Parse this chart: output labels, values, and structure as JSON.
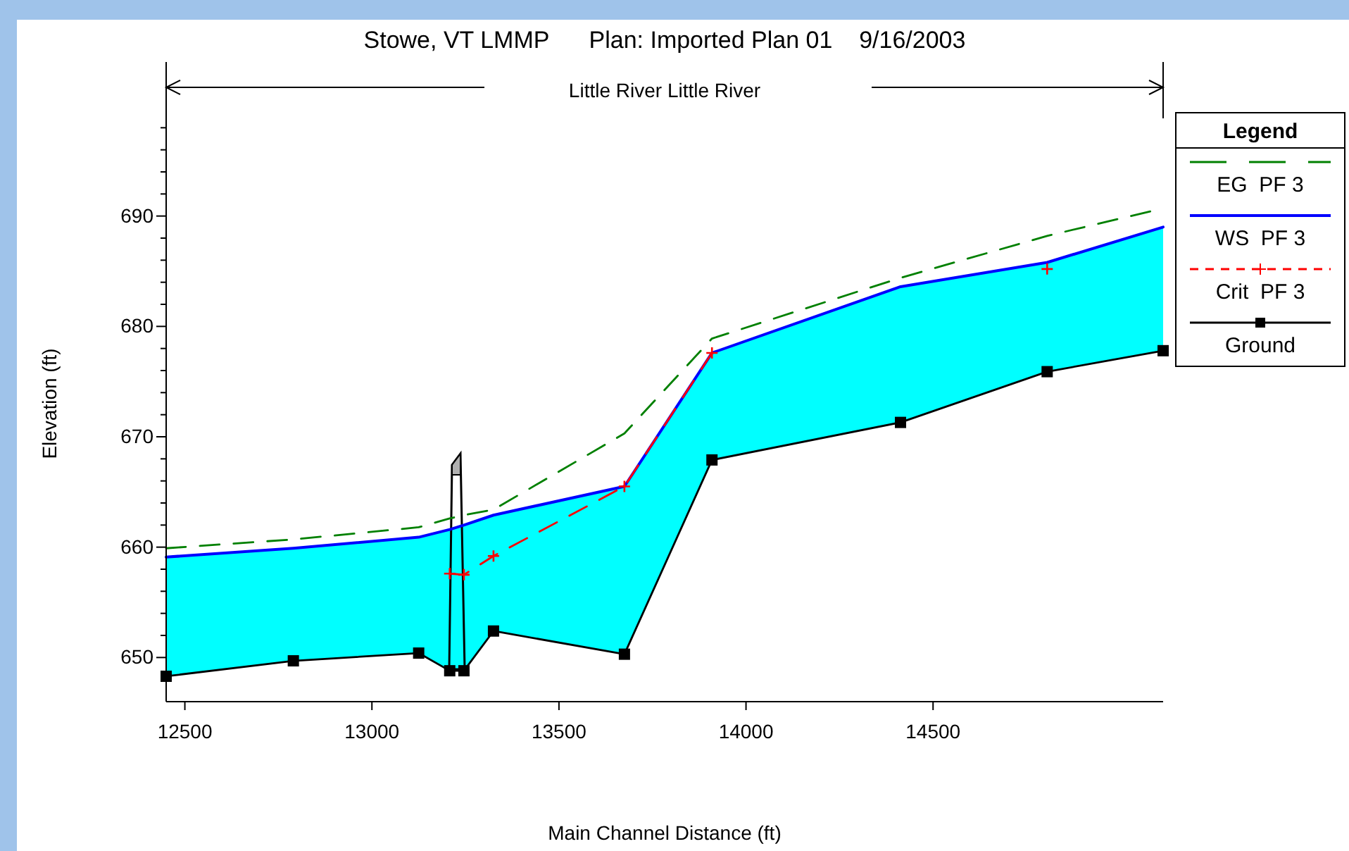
{
  "chart_data": {
    "type": "line",
    "title": "Stowe, VT LMMP      Plan: Imported Plan 01    9/16/2003",
    "subtitle": "Little River Little River",
    "xlabel": "Main Channel Distance (ft)",
    "ylabel": "Elevation (ft)",
    "legend_title": "Legend",
    "legend": "right",
    "xlim": [
      12450,
      15115
    ],
    "xticks": [
      12500,
      13000,
      13500,
      14000,
      14500
    ],
    "ylim": [
      646,
      700
    ],
    "yticks": [
      {
        "value": 648,
        "label": null
      },
      650,
      {
        "value": 652,
        "label": null
      },
      {
        "value": 654,
        "label": null
      },
      {
        "value": 656,
        "label": null
      },
      {
        "value": 658,
        "label": null
      },
      660,
      {
        "value": 662,
        "label": null
      },
      {
        "value": 664,
        "label": null
      },
      {
        "value": 666,
        "label": null
      },
      {
        "value": 668,
        "label": null
      },
      670,
      {
        "value": 672,
        "label": null
      },
      {
        "value": 674,
        "label": null
      },
      {
        "value": 676,
        "label": null
      },
      {
        "value": 678,
        "label": null
      },
      680,
      {
        "value": 682,
        "label": null
      },
      {
        "value": 684,
        "label": null
      },
      {
        "value": 686,
        "label": null
      },
      {
        "value": 688,
        "label": null
      },
      690,
      {
        "value": 692,
        "label": null
      },
      {
        "value": 694,
        "label": null
      },
      {
        "value": 696,
        "label": null
      },
      {
        "value": 698,
        "label": null
      }
    ],
    "series": [
      {
        "name": "EG  PF 3",
        "color": "#008000",
        "line_style": "dashed",
        "marker": "none",
        "x": [
          12450,
          12790,
          13125,
          13208,
          13246,
          13325,
          13675,
          13909,
          14413,
          14805,
          15115
        ],
        "values": [
          659.9,
          660.7,
          661.8,
          662.6,
          662.9,
          663.4,
          670.3,
          678.9,
          684.4,
          688.2,
          690.7
        ]
      },
      {
        "name": "WS  PF 3",
        "color": "#0000ff",
        "line_style": "solid",
        "marker": "none",
        "x": [
          12450,
          12790,
          13125,
          13208,
          13246,
          13325,
          13675,
          13909,
          14413,
          14805,
          15115
        ],
        "values": [
          659.1,
          659.9,
          660.9,
          661.6,
          662.0,
          662.9,
          665.5,
          677.6,
          683.6,
          685.8,
          689.0
        ],
        "lower": [
          648.3,
          649.7,
          650.4,
          648.8,
          648.8,
          652.4,
          650.3,
          667.9,
          671.3,
          675.9,
          677.8
        ],
        "upper": [
          659.1,
          659.9,
          660.9,
          661.6,
          662.0,
          662.9,
          665.5,
          677.6,
          683.6,
          685.8,
          689.0
        ]
      },
      {
        "name": "Crit  PF 3",
        "color": "#ff0000",
        "line_style": "dashed",
        "marker": "cross",
        "x": [
          13208,
          13246,
          13325,
          13675,
          13909
        ],
        "values": [
          657.6,
          657.5,
          659.2,
          665.5,
          677.6
        ]
      },
      {
        "type": "scatter",
        "color": "#ff0000",
        "marker": "cross",
        "x": [
          14805
        ],
        "values": [
          685.2
        ]
      },
      {
        "name": "Ground",
        "color": "#000000",
        "line_style": "solid",
        "marker": "square",
        "x": [
          12450,
          12790,
          13125,
          13208,
          13246,
          13325,
          13675,
          13909,
          14413,
          14805,
          15115
        ],
        "values": [
          648.3,
          649.7,
          650.4,
          648.8,
          648.8,
          652.4,
          650.3,
          667.9,
          671.3,
          675.9,
          677.8
        ]
      }
    ]
  }
}
